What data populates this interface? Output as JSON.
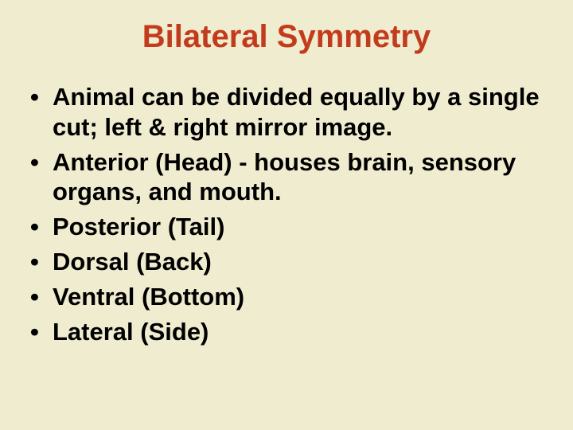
{
  "slide": {
    "title": "Bilateral Symmetry",
    "title_color": "#c33b1d",
    "title_fontsize": 40,
    "background_color": "#f0eccf",
    "body_color": "#000000",
    "body_fontsize": 31,
    "bullets": [
      "Animal can be divided equally by a single cut; left & right mirror image.",
      "Anterior (Head) - houses brain, sensory organs, and mouth.",
      "Posterior (Tail)",
      "Dorsal (Back)",
      "Ventral (Bottom)",
      "Lateral (Side)"
    ]
  }
}
